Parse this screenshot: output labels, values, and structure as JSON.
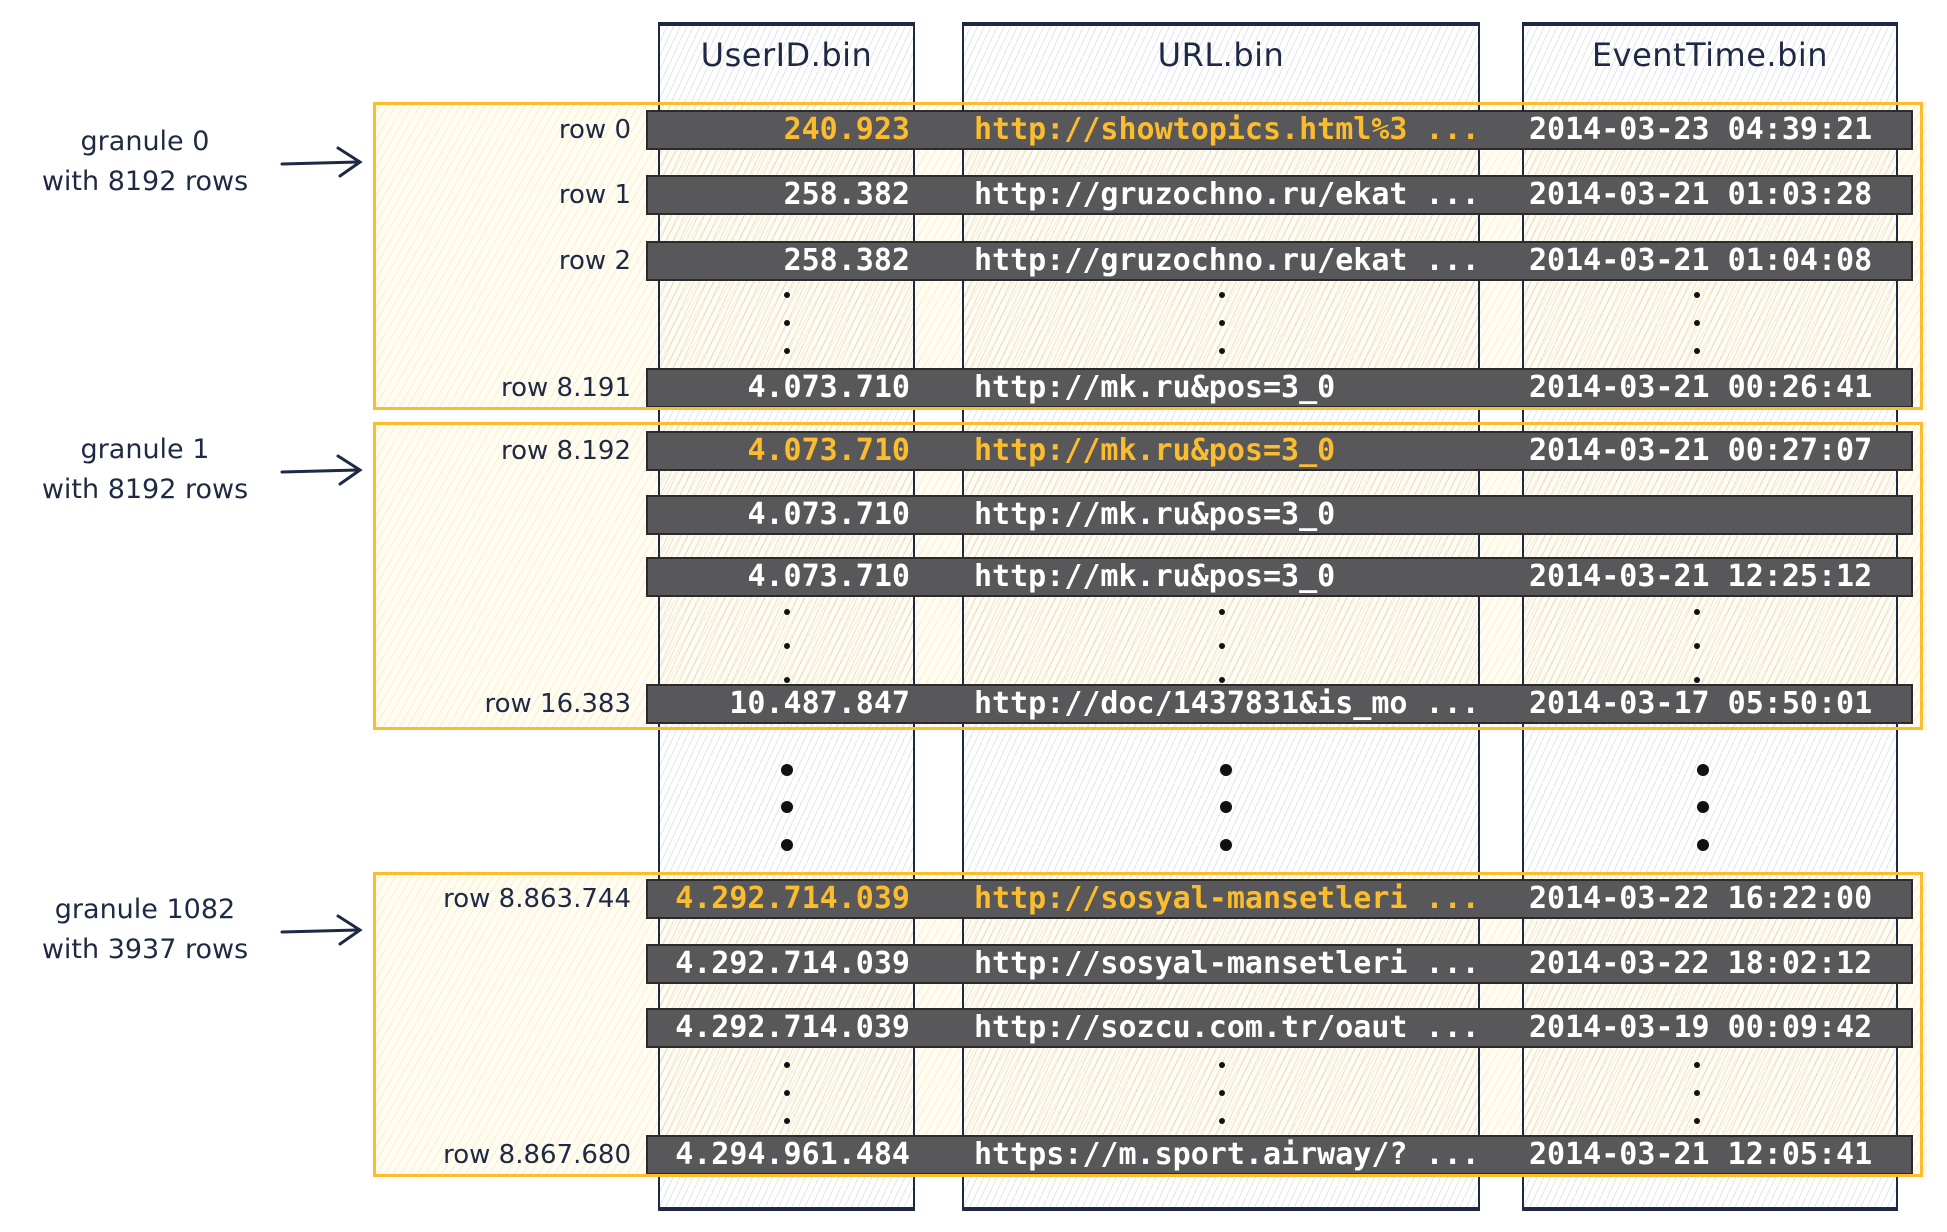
{
  "columns": [
    {
      "name": "UserID.bin"
    },
    {
      "name": "URL.bin"
    },
    {
      "name": "EventTime.bin"
    }
  ],
  "colors": {
    "highlight": "#fbbc2d",
    "row_bar": "#58585a",
    "ink": "#1e2a44"
  },
  "granules": [
    {
      "title": "granule 0",
      "subtitle": "with 8192 rows",
      "rows": [
        {
          "label": "row 0",
          "user_id": "240.923",
          "url": "http://showtopics.html%3 ...",
          "event_time": "2014-03-23 04:39:21",
          "highlight": true
        },
        {
          "label": "row 1",
          "user_id": "258.382",
          "url": "http://gruzochno.ru/ekat ...",
          "event_time": "2014-03-21 01:03:28"
        },
        {
          "label": "row 2",
          "user_id": "258.382",
          "url": "http://gruzochno.ru/ekat ...",
          "event_time": "2014-03-21 01:04:08"
        },
        {
          "label": "row 8.191",
          "user_id": "4.073.710",
          "url": "http://mk.ru&pos=3_0",
          "event_time": "2014-03-21 00:26:41"
        }
      ]
    },
    {
      "title": "granule 1",
      "subtitle": "with 8192 rows",
      "rows": [
        {
          "label": "row 8.192",
          "user_id": "4.073.710",
          "url": "http://mk.ru&pos=3_0",
          "event_time": "2014-03-21 00:27:07",
          "highlight": true
        },
        {
          "label": "",
          "user_id": "4.073.710",
          "url": "http://mk.ru&pos=3_0",
          "event_time": ""
        },
        {
          "label": "",
          "user_id": "4.073.710",
          "url": "http://mk.ru&pos=3_0",
          "event_time": "2014-03-21 12:25:12"
        },
        {
          "label": "row 16.383",
          "user_id": "10.487.847",
          "url": "http://doc/1437831&is_mo ...",
          "event_time": "2014-03-17 05:50:01"
        }
      ]
    },
    {
      "title": "granule 1082",
      "subtitle": "with 3937 rows",
      "rows": [
        {
          "label": "row 8.863.744",
          "user_id": "4.292.714.039",
          "url": "http://sosyal-mansetleri ...",
          "event_time": "2014-03-22 16:22:00",
          "highlight": true
        },
        {
          "label": "",
          "user_id": "4.292.714.039",
          "url": "http://sosyal-mansetleri ...",
          "event_time": "2014-03-22 18:02:12"
        },
        {
          "label": "",
          "user_id": "4.292.714.039",
          "url": "http://sozcu.com.tr/oaut ...",
          "event_time": "2014-03-19 00:09:42"
        },
        {
          "label": "row 8.867.680",
          "user_id": "4.294.961.484",
          "url": "https://m.sport.airway/? ...",
          "event_time": "2014-03-21 12:05:41"
        }
      ]
    }
  ]
}
